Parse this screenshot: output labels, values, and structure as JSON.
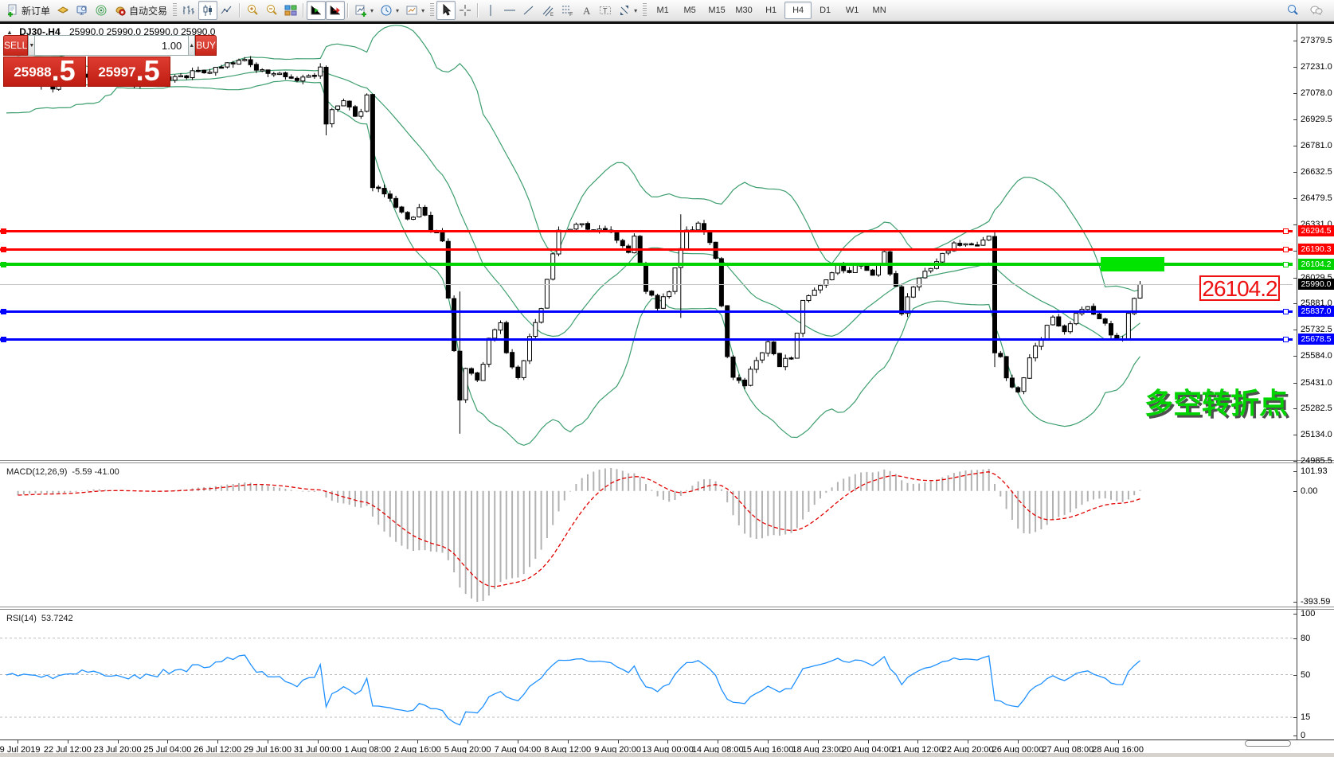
{
  "toolbar": {
    "groups": [
      {
        "items": [
          {
            "icon": "new-order-icon",
            "label": "新订单"
          },
          {
            "icon": "market-icon"
          },
          {
            "icon": "terminal-icon"
          },
          {
            "icon": "signal-icon"
          },
          {
            "icon": "autotrade-icon",
            "label": "自动交易"
          }
        ]
      },
      {
        "grip": true,
        "items": [
          {
            "icon": "bar-chart-icon"
          },
          {
            "icon": "candlestick-icon",
            "pressed": true
          },
          {
            "icon": "line-chart-icon"
          }
        ]
      },
      {
        "items": [
          {
            "icon": "zoom-in-icon"
          },
          {
            "icon": "zoom-out-icon"
          },
          {
            "icon": "tile-windows-icon"
          }
        ]
      },
      {
        "items": [
          {
            "icon": "chart-shift-icon",
            "pressed": true
          },
          {
            "icon": "auto-scroll-icon",
            "pressed": true
          }
        ]
      },
      {
        "items": [
          {
            "icon": "add-indicator-icon",
            "caret": true
          },
          {
            "icon": "periods-icon",
            "caret": true
          },
          {
            "icon": "templates-icon",
            "caret": true
          }
        ]
      },
      {
        "grip": true,
        "items": [
          {
            "icon": "cursor-icon",
            "pressed": true
          },
          {
            "icon": "crosshair-icon"
          }
        ]
      },
      {
        "items": [
          {
            "icon": "vline-icon"
          },
          {
            "icon": "hline-icon"
          },
          {
            "icon": "trendline-icon"
          },
          {
            "icon": "channel-icon"
          },
          {
            "icon": "fibonacci-icon"
          },
          {
            "icon": "text-icon"
          },
          {
            "icon": "label-icon"
          },
          {
            "icon": "shapes-icon",
            "caret": true
          }
        ]
      },
      {
        "grip": true,
        "timeframes": true
      }
    ],
    "timeframes": [
      "M1",
      "M5",
      "M15",
      "M30",
      "H1",
      "H4",
      "D1",
      "W1",
      "MN"
    ],
    "active_timeframe": "H4",
    "right_icons": [
      "search-icon",
      "chat-icon"
    ]
  },
  "chart": {
    "title_symbol": "DJ30-,H4",
    "title_ohlc": "25990.0 25990.0 25990.0 25990.0",
    "trade_panel": {
      "sell_label": "SELL",
      "buy_label": "BUY",
      "volume": "1.00",
      "sell_price": {
        "main": "25988",
        "frac": ".5"
      },
      "buy_price": {
        "main": "25997",
        "frac": ".5"
      }
    },
    "price_axis_ticks": [
      "27379.5",
      "27231.0",
      "27078.0",
      "26929.5",
      "26781.0",
      "26632.5",
      "26479.5",
      "26331.0",
      "26182.5",
      "26029.5",
      "25881.0",
      "25732.5",
      "25584.0",
      "25431.0",
      "25282.5",
      "25134.0",
      "24985.5"
    ],
    "levels": [
      {
        "label": "26294.5",
        "value": 26294.5,
        "color": "#ff0000",
        "thickness": 3,
        "name": "resistance-line-1"
      },
      {
        "label": "26190.3",
        "value": 26190.3,
        "color": "#ff0000",
        "thickness": 3,
        "name": "resistance-line-2"
      },
      {
        "label": "26104.2",
        "value": 26104.2,
        "color": "#00d300",
        "thickness": 4,
        "name": "pivot-line"
      },
      {
        "label": "25837.0",
        "value": 25837.0,
        "color": "#0000ff",
        "thickness": 3,
        "name": "support-line-1"
      },
      {
        "label": "25678.5",
        "value": 25678.5,
        "color": "#0000ff",
        "thickness": 3,
        "name": "support-line-2"
      }
    ],
    "current_price": {
      "label": "25990.0",
      "value": 25990.0,
      "tag_color": "#000000"
    },
    "big_price_label": "26104.2",
    "annotation": "多空转折点",
    "time_axis": [
      "19 Jul 2019",
      "22 Jul 12:00",
      "23 Jul 20:00",
      "25 Jul 04:00",
      "26 Jul 12:00",
      "29 Jul 16:00",
      "31 Jul 00:00",
      "1 Aug 08:00",
      "2 Aug 16:00",
      "5 Aug 20:00",
      "7 Aug 04:00",
      "8 Aug 12:00",
      "9 Aug 20:00",
      "13 Aug 00:00",
      "14 Aug 08:00",
      "15 Aug 16:00",
      "18 Aug 23:00",
      "20 Aug 04:00",
      "21 Aug 12:00",
      "22 Aug 20:00",
      "26 Aug 00:00",
      "27 Aug 08:00",
      "28 Aug 16:00"
    ]
  },
  "indicators": {
    "macd": {
      "label": "MACD(12,26,9)",
      "values": "-5.59 -41.00",
      "axis": [
        "101.93",
        "0.00",
        "-393.59"
      ]
    },
    "rsi": {
      "label": "RSI(14)",
      "value": "53.7242",
      "axis": [
        "100",
        "80",
        "50",
        "15",
        "0"
      ],
      "levels": [
        80,
        50,
        15
      ]
    }
  },
  "chart_data": {
    "type": "candlestick",
    "symbol": "DJ30-",
    "timeframe": "H4",
    "y_range": [
      24985.5,
      27379.5
    ],
    "bars": 196,
    "noise": 22,
    "seed": 9,
    "overlays": {
      "bollinger": {
        "period": 20,
        "deviation": 2,
        "color": "#3d9e6e"
      }
    },
    "waypoints": [
      [
        0,
        27160
      ],
      [
        8,
        27120
      ],
      [
        14,
        27180
      ],
      [
        20,
        27120
      ],
      [
        27,
        27160
      ],
      [
        33,
        27200
      ],
      [
        40,
        27265
      ],
      [
        45,
        27200
      ],
      [
        50,
        27150
      ],
      [
        54,
        27210
      ],
      [
        55,
        26900
      ],
      [
        56,
        26980
      ],
      [
        58,
        27030
      ],
      [
        60,
        26930
      ],
      [
        62,
        27060
      ],
      [
        63,
        26560
      ],
      [
        65,
        26500
      ],
      [
        67,
        26420
      ],
      [
        69,
        26350
      ],
      [
        71,
        26420
      ],
      [
        73,
        26310
      ],
      [
        75,
        26230
      ],
      [
        76,
        25900
      ],
      [
        77,
        25620
      ],
      [
        78,
        25320
      ],
      [
        79,
        25520
      ],
      [
        81,
        25430
      ],
      [
        83,
        25680
      ],
      [
        85,
        25780
      ],
      [
        86,
        25600
      ],
      [
        88,
        25460
      ],
      [
        90,
        25680
      ],
      [
        92,
        25850
      ],
      [
        94,
        26150
      ],
      [
        95,
        26320
      ],
      [
        97,
        26300
      ],
      [
        99,
        26350
      ],
      [
        101,
        26280
      ],
      [
        103,
        26320
      ],
      [
        105,
        26260
      ],
      [
        107,
        26190
      ],
      [
        108,
        26280
      ],
      [
        110,
        25960
      ],
      [
        112,
        25870
      ],
      [
        114,
        25940
      ],
      [
        116,
        26200
      ],
      [
        117,
        26280
      ],
      [
        119,
        26320
      ],
      [
        121,
        26230
      ],
      [
        122,
        26150
      ],
      [
        123,
        25850
      ],
      [
        124,
        25560
      ],
      [
        125,
        25480
      ],
      [
        127,
        25420
      ],
      [
        129,
        25560
      ],
      [
        131,
        25650
      ],
      [
        133,
        25520
      ],
      [
        135,
        25590
      ],
      [
        137,
        25880
      ],
      [
        139,
        25940
      ],
      [
        141,
        26000
      ],
      [
        143,
        26090
      ],
      [
        145,
        26060
      ],
      [
        147,
        26110
      ],
      [
        149,
        26040
      ],
      [
        151,
        26160
      ],
      [
        153,
        25980
      ],
      [
        154,
        25840
      ],
      [
        156,
        25980
      ],
      [
        158,
        26060
      ],
      [
        160,
        26130
      ],
      [
        162,
        26190
      ],
      [
        164,
        26230
      ],
      [
        166,
        26210
      ],
      [
        168,
        26260
      ],
      [
        169,
        26280
      ],
      [
        170,
        25600
      ],
      [
        171,
        25560
      ],
      [
        172,
        25460
      ],
      [
        174,
        25380
      ],
      [
        176,
        25560
      ],
      [
        178,
        25680
      ],
      [
        180,
        25800
      ],
      [
        182,
        25740
      ],
      [
        184,
        25820
      ],
      [
        186,
        25860
      ],
      [
        188,
        25790
      ],
      [
        190,
        25720
      ],
      [
        192,
        25660
      ],
      [
        193,
        25810
      ],
      [
        194,
        25920
      ],
      [
        195,
        25990
      ]
    ],
    "wick_overrides": {
      "55": [
        null,
        26840
      ],
      "78": [
        25950,
        25140
      ],
      "116": [
        26390,
        25800
      ],
      "170": [
        26300,
        25520
      ]
    },
    "key_levels": [
      26294.5,
      26190.3,
      26104.2,
      25837.0,
      25678.5
    ],
    "last_close": 25990.0,
    "highlight_box": {
      "price": 26104.2,
      "color": "#00e400"
    }
  }
}
